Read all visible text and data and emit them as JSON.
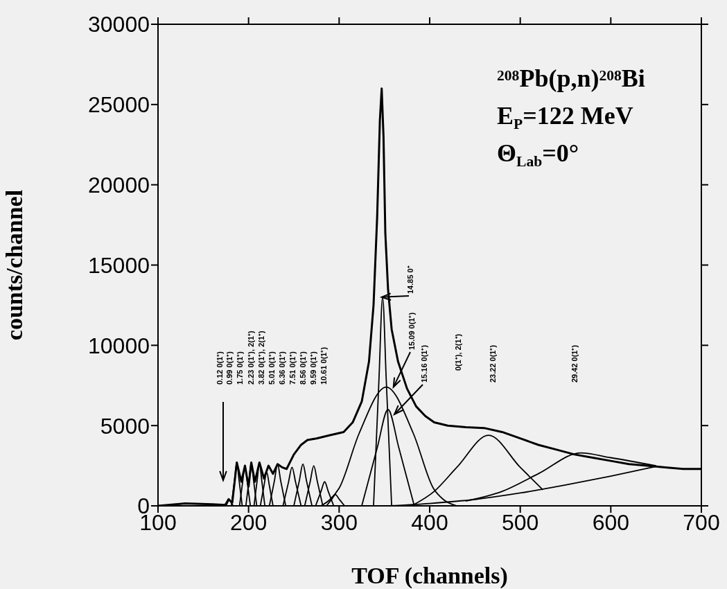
{
  "chart_data": {
    "type": "line",
    "xlabel": "TOF  (channels)",
    "ylabel": "counts/channel",
    "xlim": [
      100,
      700
    ],
    "xticks": [
      100,
      200,
      300,
      400,
      500,
      600,
      700
    ],
    "ylim": [
      0,
      30000
    ],
    "yticks": [
      0,
      5000,
      10000,
      15000,
      20000,
      25000,
      30000
    ],
    "marker": "none",
    "series": [
      {
        "color": "#000000",
        "x": [
          100,
          130,
          160,
          175,
          178,
          182,
          187,
          192,
          196,
          200,
          203,
          207,
          212,
          217,
          222,
          227,
          232,
          237,
          242,
          250,
          258,
          265,
          275,
          290,
          305,
          315,
          325,
          333,
          338,
          342,
          345,
          347,
          349,
          351,
          354,
          358,
          365,
          375,
          385,
          395,
          405,
          420,
          440,
          460,
          480,
          500,
          520,
          540,
          560,
          580,
          600,
          620,
          640,
          660,
          680,
          700
        ],
        "values": [
          0,
          150,
          100,
          50,
          400,
          200,
          2700,
          1500,
          2500,
          1200,
          2700,
          1500,
          2700,
          1700,
          2500,
          2000,
          2600,
          2400,
          2300,
          3200,
          3800,
          4100,
          4200,
          4400,
          4600,
          5200,
          6500,
          9000,
          12500,
          18000,
          24000,
          26000,
          23000,
          17000,
          13500,
          11000,
          9000,
          7300,
          6200,
          5600,
          5200,
          5000,
          4900,
          4850,
          4600,
          4200,
          3800,
          3500,
          3200,
          3000,
          2800,
          2600,
          2500,
          2400,
          2300,
          2300
        ]
      },
      {
        "color": "#000000",
        "x": [
          173,
          176,
          178,
          180,
          183
        ],
        "values": [
          0,
          270,
          450,
          270,
          0
        ]
      },
      {
        "color": "#000000",
        "x": [
          181,
          184.5,
          187,
          189.5,
          193
        ],
        "values": [
          0,
          1600,
          2700,
          1600,
          0
        ]
      },
      {
        "color": "#000000",
        "x": [
          190,
          193.5,
          196,
          198.5,
          202
        ],
        "values": [
          0,
          1500,
          2500,
          1500,
          0
        ]
      },
      {
        "color": "#000000",
        "x": [
          197,
          200.5,
          203,
          205.5,
          209
        ],
        "values": [
          0,
          1600,
          2700,
          1600,
          0
        ]
      },
      {
        "color": "#000000",
        "x": [
          206,
          209.5,
          212,
          214.5,
          218
        ],
        "values": [
          0,
          1600,
          2700,
          1600,
          0
        ]
      },
      {
        "color": "#000000",
        "x": [
          213,
          217,
          220,
          223,
          227
        ],
        "values": [
          0,
          1250,
          2100,
          1250,
          0
        ]
      },
      {
        "color": "#000000",
        "x": [
          223,
          228.5,
          232,
          235.5,
          241
        ],
        "values": [
          0,
          1550,
          2600,
          1550,
          0
        ]
      },
      {
        "color": "#000000",
        "x": [
          238,
          244,
          248,
          252,
          258
        ],
        "values": [
          0,
          1450,
          2400,
          1450,
          0
        ]
      },
      {
        "color": "#000000",
        "x": [
          250,
          256,
          260,
          264,
          270
        ],
        "values": [
          0,
          1550,
          2600,
          1550,
          0
        ]
      },
      {
        "color": "#000000",
        "x": [
          262,
          268,
          272,
          276,
          282
        ],
        "values": [
          0,
          1500,
          2500,
          1500,
          0
        ]
      },
      {
        "color": "#000000",
        "x": [
          274,
          280,
          284,
          288,
          294
        ],
        "values": [
          0,
          900,
          1500,
          900,
          0
        ]
      },
      {
        "color": "#000000",
        "x": [
          286,
          292,
          296,
          300,
          306
        ],
        "values": [
          0,
          420,
          700,
          420,
          0
        ]
      },
      {
        "color": "#000000",
        "x": [
          338,
          344,
          348,
          352,
          358
        ],
        "values": [
          0,
          7900,
          13000,
          7900,
          0
        ]
      },
      {
        "color": "#000000",
        "x": [
          280,
          290,
          300,
          322,
          352,
          382,
          404,
          415,
          430
        ],
        "values": [
          0,
          400,
          1100,
          4500,
          7400,
          4500,
          1100,
          400,
          0
        ]
      },
      {
        "color": "#000000",
        "x": [
          325,
          342,
          354,
          366,
          383
        ],
        "values": [
          0,
          3600,
          6000,
          3600,
          0
        ]
      },
      {
        "color": "#000000",
        "x": [
          380,
          405,
          430,
          465,
          500,
          525
        ],
        "values": [
          0,
          900,
          2400,
          4400,
          2400,
          1000
        ]
      },
      {
        "color": "#000000",
        "x": [
          440,
          480,
          520,
          567,
          600,
          650
        ],
        "values": [
          300,
          900,
          2000,
          3300,
          3000,
          2500
        ]
      },
      {
        "color": "#000000",
        "x": [
          355,
          400,
          450,
          500,
          550,
          600,
          650
        ],
        "values": [
          0,
          150,
          400,
          800,
          1300,
          1850,
          2450
        ]
      }
    ],
    "annotations": [
      "$^{208}$Pb(p,n)$^{208}$Bi",
      "E$_{P}$=122  MeV",
      "Θ$_{Lab}$=0°",
      "0.12 0(1⁺)",
      "0.99 0(1⁺)",
      "1.75 0(1⁺)",
      "2.23 0(1⁺), 2(1⁺)",
      "3.82 0(1⁺), 2(1⁺)",
      "5.01 0(1⁺)",
      "6.36 0(1⁺)",
      "7.51 0(1⁺)",
      "8.56 0(1⁺)",
      "9.59 0(1⁺)",
      "10.61 0(1⁺)",
      {
        "text": "14.85 0⁺",
        "x": 347,
        "y": 13000
      },
      {
        "text": "15.09 0(1⁺)",
        "x": 360,
        "y": 7400
      },
      {
        "text": "15.16 0(1⁺)",
        "x": 361,
        "y": 5700
      },
      "0(1⁺), 2(1⁺)",
      "23.22 0(1⁺)",
      "29.42 0(1⁺)"
    ]
  }
}
